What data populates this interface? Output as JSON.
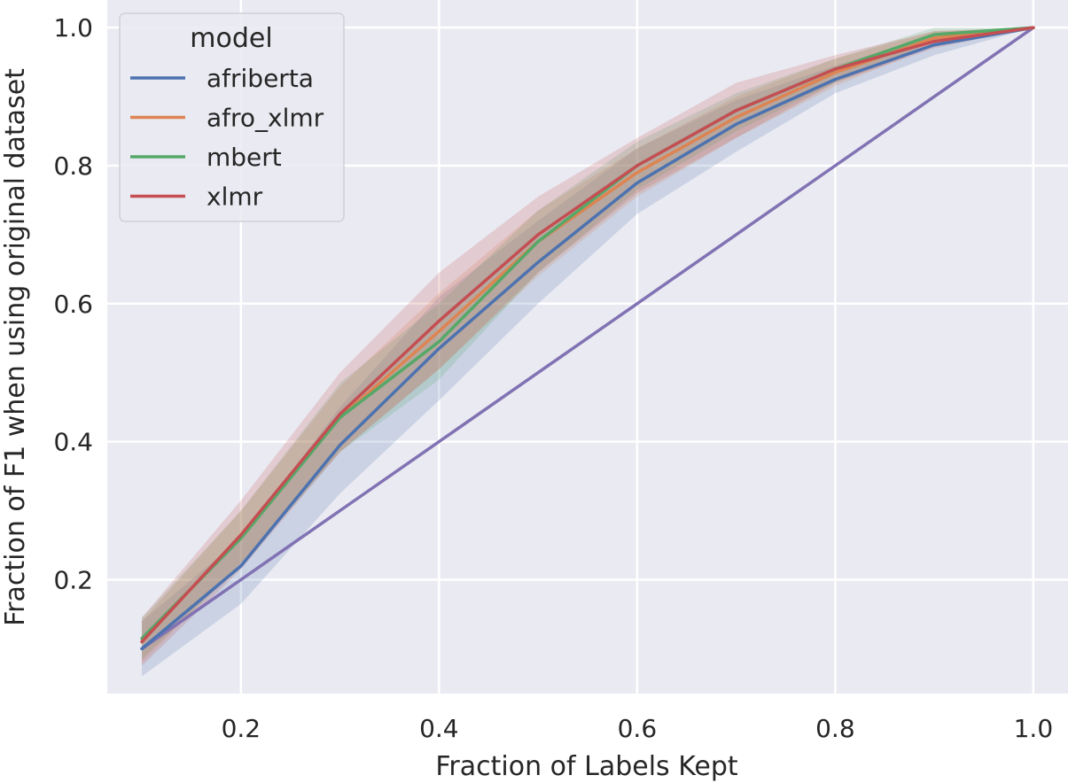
{
  "chart_data": {
    "type": "line",
    "xlabel": "Fraction of Labels Kept",
    "ylabel": "Fraction of F1 when using original dataset",
    "xlim": [
      0.065,
      1.035
    ],
    "ylim": [
      0.035,
      1.04
    ],
    "xticks": [
      0.2,
      0.4,
      0.6,
      0.8,
      1.0
    ],
    "xtick_labels": [
      "0.2",
      "0.4",
      "0.6",
      "0.8",
      "1.0"
    ],
    "yticks": [
      0.2,
      0.4,
      0.6,
      0.8,
      1.0
    ],
    "ytick_labels": [
      "0.2",
      "0.4",
      "0.6",
      "0.8",
      "1.0"
    ],
    "grid": true,
    "legend": {
      "title": "model",
      "placement": "top-left"
    },
    "x": [
      0.1,
      0.2,
      0.3,
      0.4,
      0.5,
      0.6,
      0.7,
      0.8,
      0.9,
      1.0
    ],
    "series": [
      {
        "name": "afriberta",
        "color": "#4c72b0",
        "values": [
          0.1,
          0.22,
          0.395,
          0.535,
          0.66,
          0.775,
          0.86,
          0.925,
          0.975,
          1.0
        ],
        "lower": [
          0.06,
          0.165,
          0.325,
          0.46,
          0.6,
          0.73,
          0.82,
          0.905,
          0.96,
          1.0
        ],
        "upper": [
          0.14,
          0.26,
          0.45,
          0.61,
          0.72,
          0.825,
          0.895,
          0.945,
          0.99,
          1.0
        ]
      },
      {
        "name": "afro_xlmr",
        "color": "#dd8452",
        "values": [
          0.11,
          0.265,
          0.435,
          0.56,
          0.69,
          0.79,
          0.87,
          0.935,
          0.985,
          1.0
        ],
        "lower": [
          0.08,
          0.225,
          0.385,
          0.505,
          0.64,
          0.755,
          0.84,
          0.915,
          0.975,
          1.0
        ],
        "upper": [
          0.14,
          0.3,
          0.48,
          0.615,
          0.735,
          0.825,
          0.9,
          0.955,
          0.995,
          1.0
        ]
      },
      {
        "name": "mbert",
        "color": "#55a868",
        "values": [
          0.115,
          0.26,
          0.435,
          0.545,
          0.69,
          0.8,
          0.88,
          0.94,
          0.99,
          1.0
        ],
        "lower": [
          0.085,
          0.22,
          0.385,
          0.49,
          0.645,
          0.765,
          0.85,
          0.92,
          0.98,
          1.0
        ],
        "upper": [
          0.145,
          0.3,
          0.485,
          0.6,
          0.735,
          0.835,
          0.905,
          0.955,
          1.0,
          1.0
        ]
      },
      {
        "name": "xlmr",
        "color": "#c44e52",
        "values": [
          0.11,
          0.265,
          0.44,
          0.575,
          0.7,
          0.8,
          0.88,
          0.94,
          0.98,
          1.0
        ],
        "lower": [
          0.075,
          0.215,
          0.385,
          0.505,
          0.645,
          0.76,
          0.84,
          0.92,
          0.97,
          1.0
        ],
        "upper": [
          0.145,
          0.315,
          0.5,
          0.645,
          0.755,
          0.84,
          0.92,
          0.96,
          0.995,
          1.0
        ]
      },
      {
        "color": "#8172b3",
        "values": [
          0.1,
          0.2,
          0.3,
          0.4,
          0.5,
          0.6,
          0.7,
          0.8,
          0.9,
          1.0
        ]
      }
    ]
  }
}
